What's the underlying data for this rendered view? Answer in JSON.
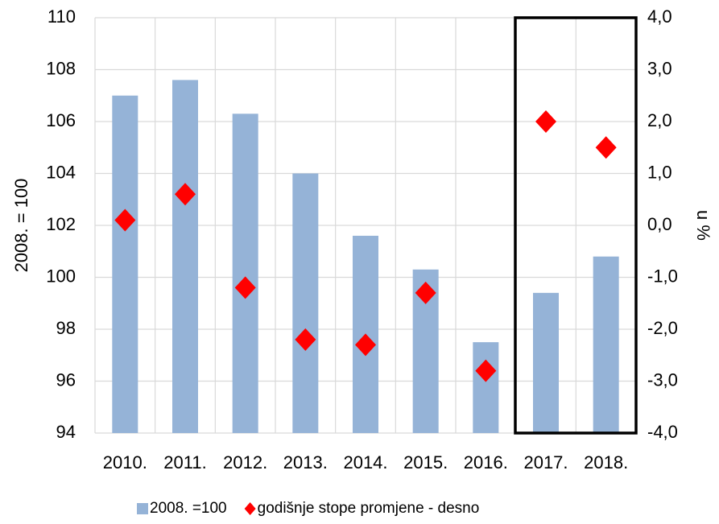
{
  "chart_data": {
    "type": "bar_scatter",
    "ylabel": "2008. = 100",
    "y2label": "u %",
    "categories": [
      "2010.",
      "2011.",
      "2012.",
      "2013.",
      "2014.",
      "2015.",
      "2016.",
      "2017.",
      "2018."
    ],
    "series": [
      {
        "name": "2008. =100",
        "color": "#95b3d7",
        "type": "bar",
        "values": [
          107.0,
          107.6,
          106.3,
          104.0,
          101.6,
          100.3,
          97.5,
          99.4,
          100.8
        ]
      },
      {
        "name": "godišnje stope promjene - desno",
        "color": "#ff0000",
        "type": "diamond",
        "axis": "y2",
        "values": [
          0.1,
          0.6,
          -1.2,
          -2.2,
          -2.3,
          -1.3,
          -2.8,
          2.0,
          1.5
        ]
      }
    ],
    "ylim": [
      94,
      110
    ],
    "yticks": [
      94,
      96,
      98,
      100,
      102,
      104,
      106,
      108,
      110
    ],
    "y2lim": [
      -4,
      4
    ],
    "y2ticks": [
      {
        "value": -4,
        "label": "-4,0"
      },
      {
        "value": -3,
        "label": "-3,0"
      },
      {
        "value": -2,
        "label": "-2,0"
      },
      {
        "value": -1,
        "label": "-1,0"
      },
      {
        "value": 0,
        "label": "0,0"
      },
      {
        "value": 1,
        "label": "1,0"
      },
      {
        "value": 2,
        "label": "2,0"
      },
      {
        "value": 3,
        "label": "3,0"
      },
      {
        "value": 4,
        "label": "4,0"
      }
    ],
    "grid": true,
    "legend": "bottom"
  }
}
